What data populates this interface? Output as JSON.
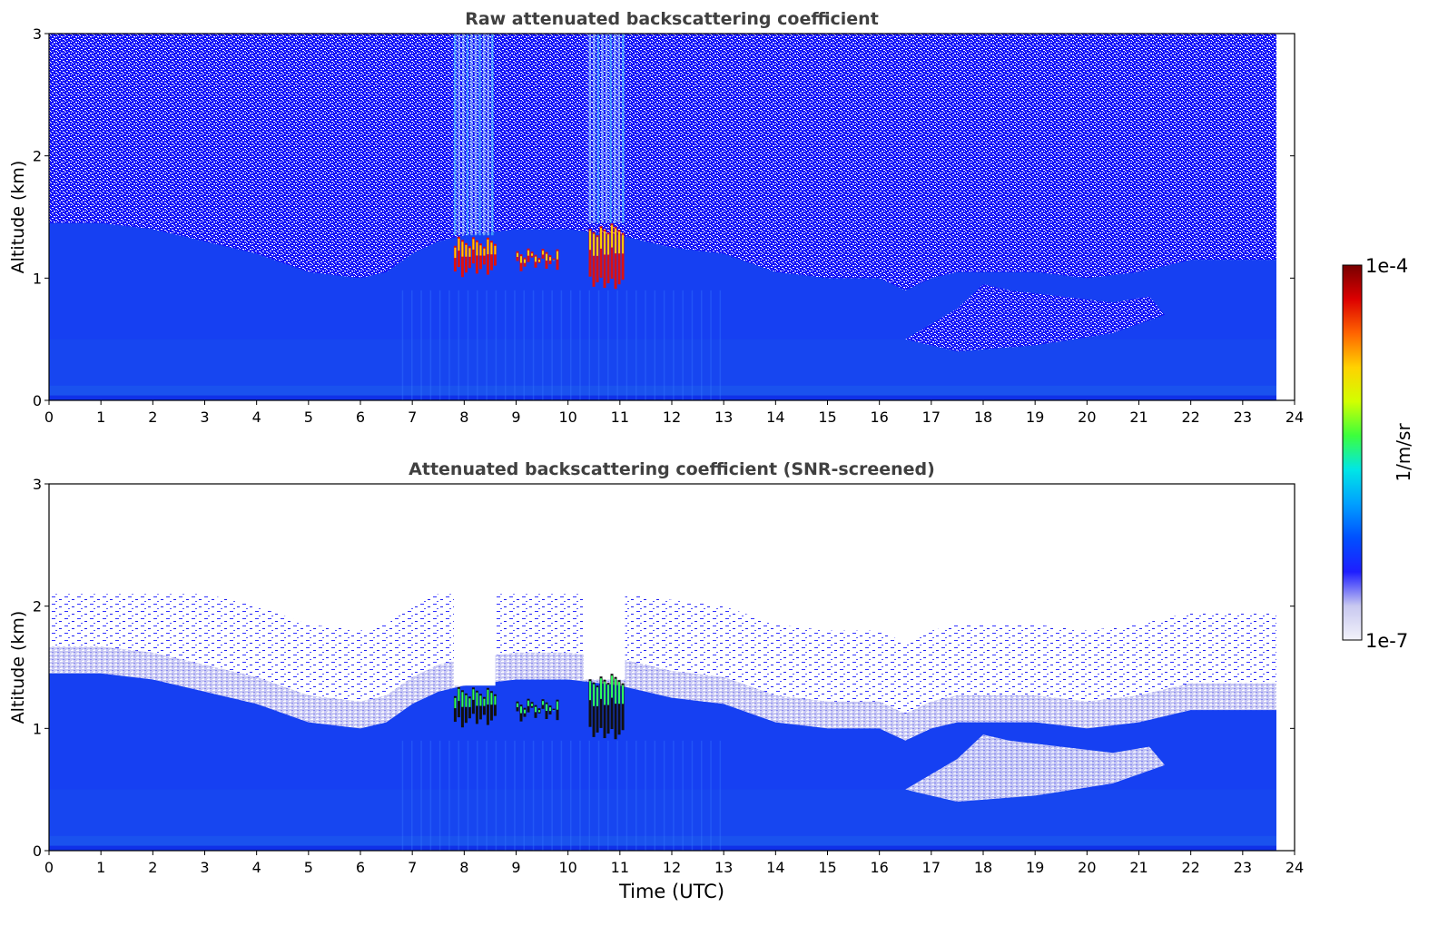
{
  "chart_data": [
    {
      "type": "heatmap",
      "title": "Raw attenuated backscattering coefficient",
      "xlabel": "",
      "ylabel": "Altitude (km)",
      "xlim": [
        0,
        24
      ],
      "ylim": [
        0,
        3
      ],
      "xticks": [
        "0",
        "1",
        "2",
        "3",
        "4",
        "5",
        "6",
        "7",
        "8",
        "9",
        "10",
        "11",
        "12",
        "13",
        "14",
        "15",
        "16",
        "17",
        "18",
        "19",
        "20",
        "21",
        "22",
        "23",
        "24"
      ],
      "yticks": [
        "0",
        "1",
        "2",
        "3"
      ],
      "data_end_time": 23.65,
      "boundary_layer_top_km": [
        [
          0,
          1.45
        ],
        [
          1,
          1.45
        ],
        [
          2,
          1.4
        ],
        [
          3,
          1.3
        ],
        [
          4,
          1.2
        ],
        [
          5,
          1.05
        ],
        [
          6,
          1.0
        ],
        [
          6.5,
          1.05
        ],
        [
          7,
          1.2
        ],
        [
          7.5,
          1.3
        ],
        [
          8,
          1.35
        ],
        [
          9,
          1.4
        ],
        [
          10,
          1.4
        ],
        [
          11,
          1.35
        ],
        [
          12,
          1.25
        ],
        [
          13,
          1.2
        ],
        [
          14,
          1.05
        ],
        [
          15,
          1.0
        ],
        [
          16,
          1.0
        ],
        [
          16.5,
          0.9
        ],
        [
          17,
          1.0
        ],
        [
          17.5,
          1.05
        ],
        [
          18,
          1.05
        ],
        [
          19,
          1.05
        ],
        [
          20,
          1.0
        ],
        [
          21,
          1.05
        ],
        [
          22,
          1.15
        ],
        [
          23,
          1.15
        ],
        [
          23.65,
          1.15
        ]
      ],
      "clouds": [
        {
          "t_start": 7.8,
          "t_end": 8.6,
          "z_bottom_km": 1.0,
          "z_top_km": 1.35
        },
        {
          "t_start": 9.0,
          "t_end": 9.8,
          "z_bottom_km": 1.05,
          "z_top_km": 1.25
        },
        {
          "t_start": 10.4,
          "t_end": 11.1,
          "z_bottom_km": 0.9,
          "z_top_km": 1.45
        }
      ],
      "colorbar": {
        "min_label": "1e-7",
        "max_label": "1e-4",
        "label": "1/m/sr"
      }
    },
    {
      "type": "heatmap",
      "title": "Attenuated backscattering coefficient (SNR-screened)",
      "xlabel": "Time (UTC)",
      "ylabel": "Altitude (km)",
      "xlim": [
        0,
        24
      ],
      "ylim": [
        0,
        3
      ],
      "xticks": [
        "0",
        "1",
        "2",
        "3",
        "4",
        "5",
        "6",
        "7",
        "8",
        "9",
        "10",
        "11",
        "12",
        "13",
        "14",
        "15",
        "16",
        "17",
        "18",
        "19",
        "20",
        "21",
        "22",
        "23",
        "24"
      ],
      "yticks": [
        "0",
        "1",
        "2",
        "3"
      ],
      "data_end_time": 23.65,
      "screened_gaps": [
        {
          "t_start": 7.8,
          "t_end": 8.6,
          "z_bottom_km": 1.35
        },
        {
          "t_start": 10.3,
          "t_end": 11.1,
          "z_bottom_km": 1.4
        }
      ]
    }
  ],
  "colormap": [
    "#f2f2fa",
    "#c8c8f0",
    "#1e1eff",
    "#0050ff",
    "#00a0ff",
    "#00e6e6",
    "#3cff3c",
    "#d2ff00",
    "#ffd200",
    "#ff6400",
    "#dc0000",
    "#780000"
  ],
  "colors": {
    "noise": "#1010ff",
    "boundary_layer": "#1640f2",
    "surface_layer": "#1a52ee",
    "text": "#404040"
  }
}
